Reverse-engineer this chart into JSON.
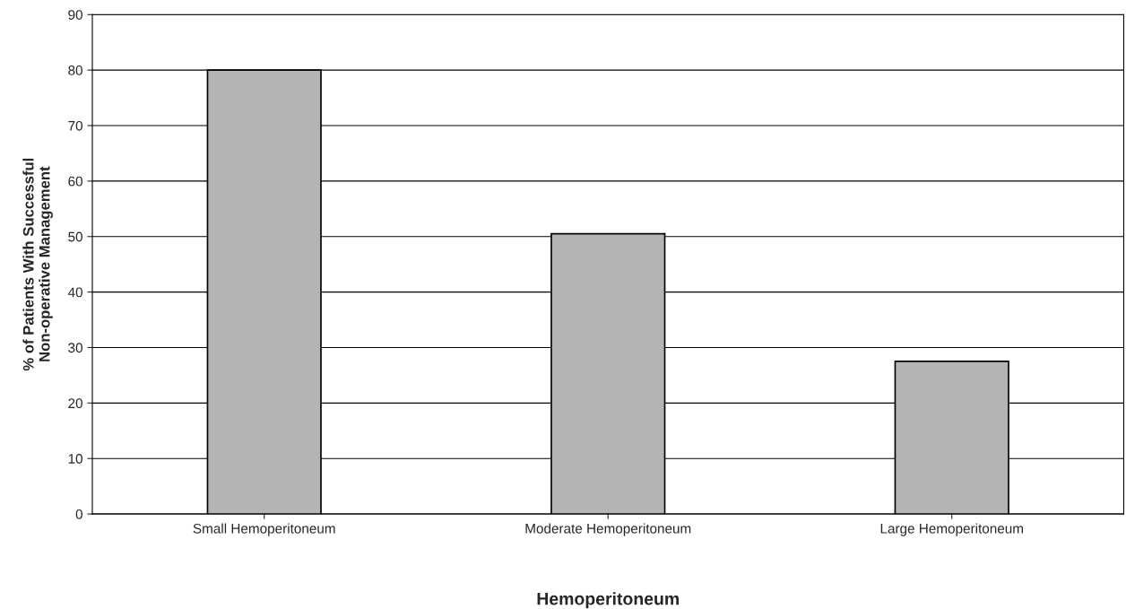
{
  "chart_data": {
    "type": "bar",
    "xlabel": "Hemoperitoneum",
    "ylabel": "% of Patients With Successful\nNon-operative Management",
    "categories": [
      "Small Hemoperitoneum",
      "Moderate Hemoperitoneum",
      "Large Hemoperitoneum"
    ],
    "values": [
      80,
      50.5,
      27.5
    ],
    "color": "#b4b4b4",
    "ylim": [
      0,
      90
    ],
    "yticks": [
      0,
      10,
      20,
      30,
      40,
      50,
      60,
      70,
      80,
      90
    ],
    "grid": "y"
  }
}
